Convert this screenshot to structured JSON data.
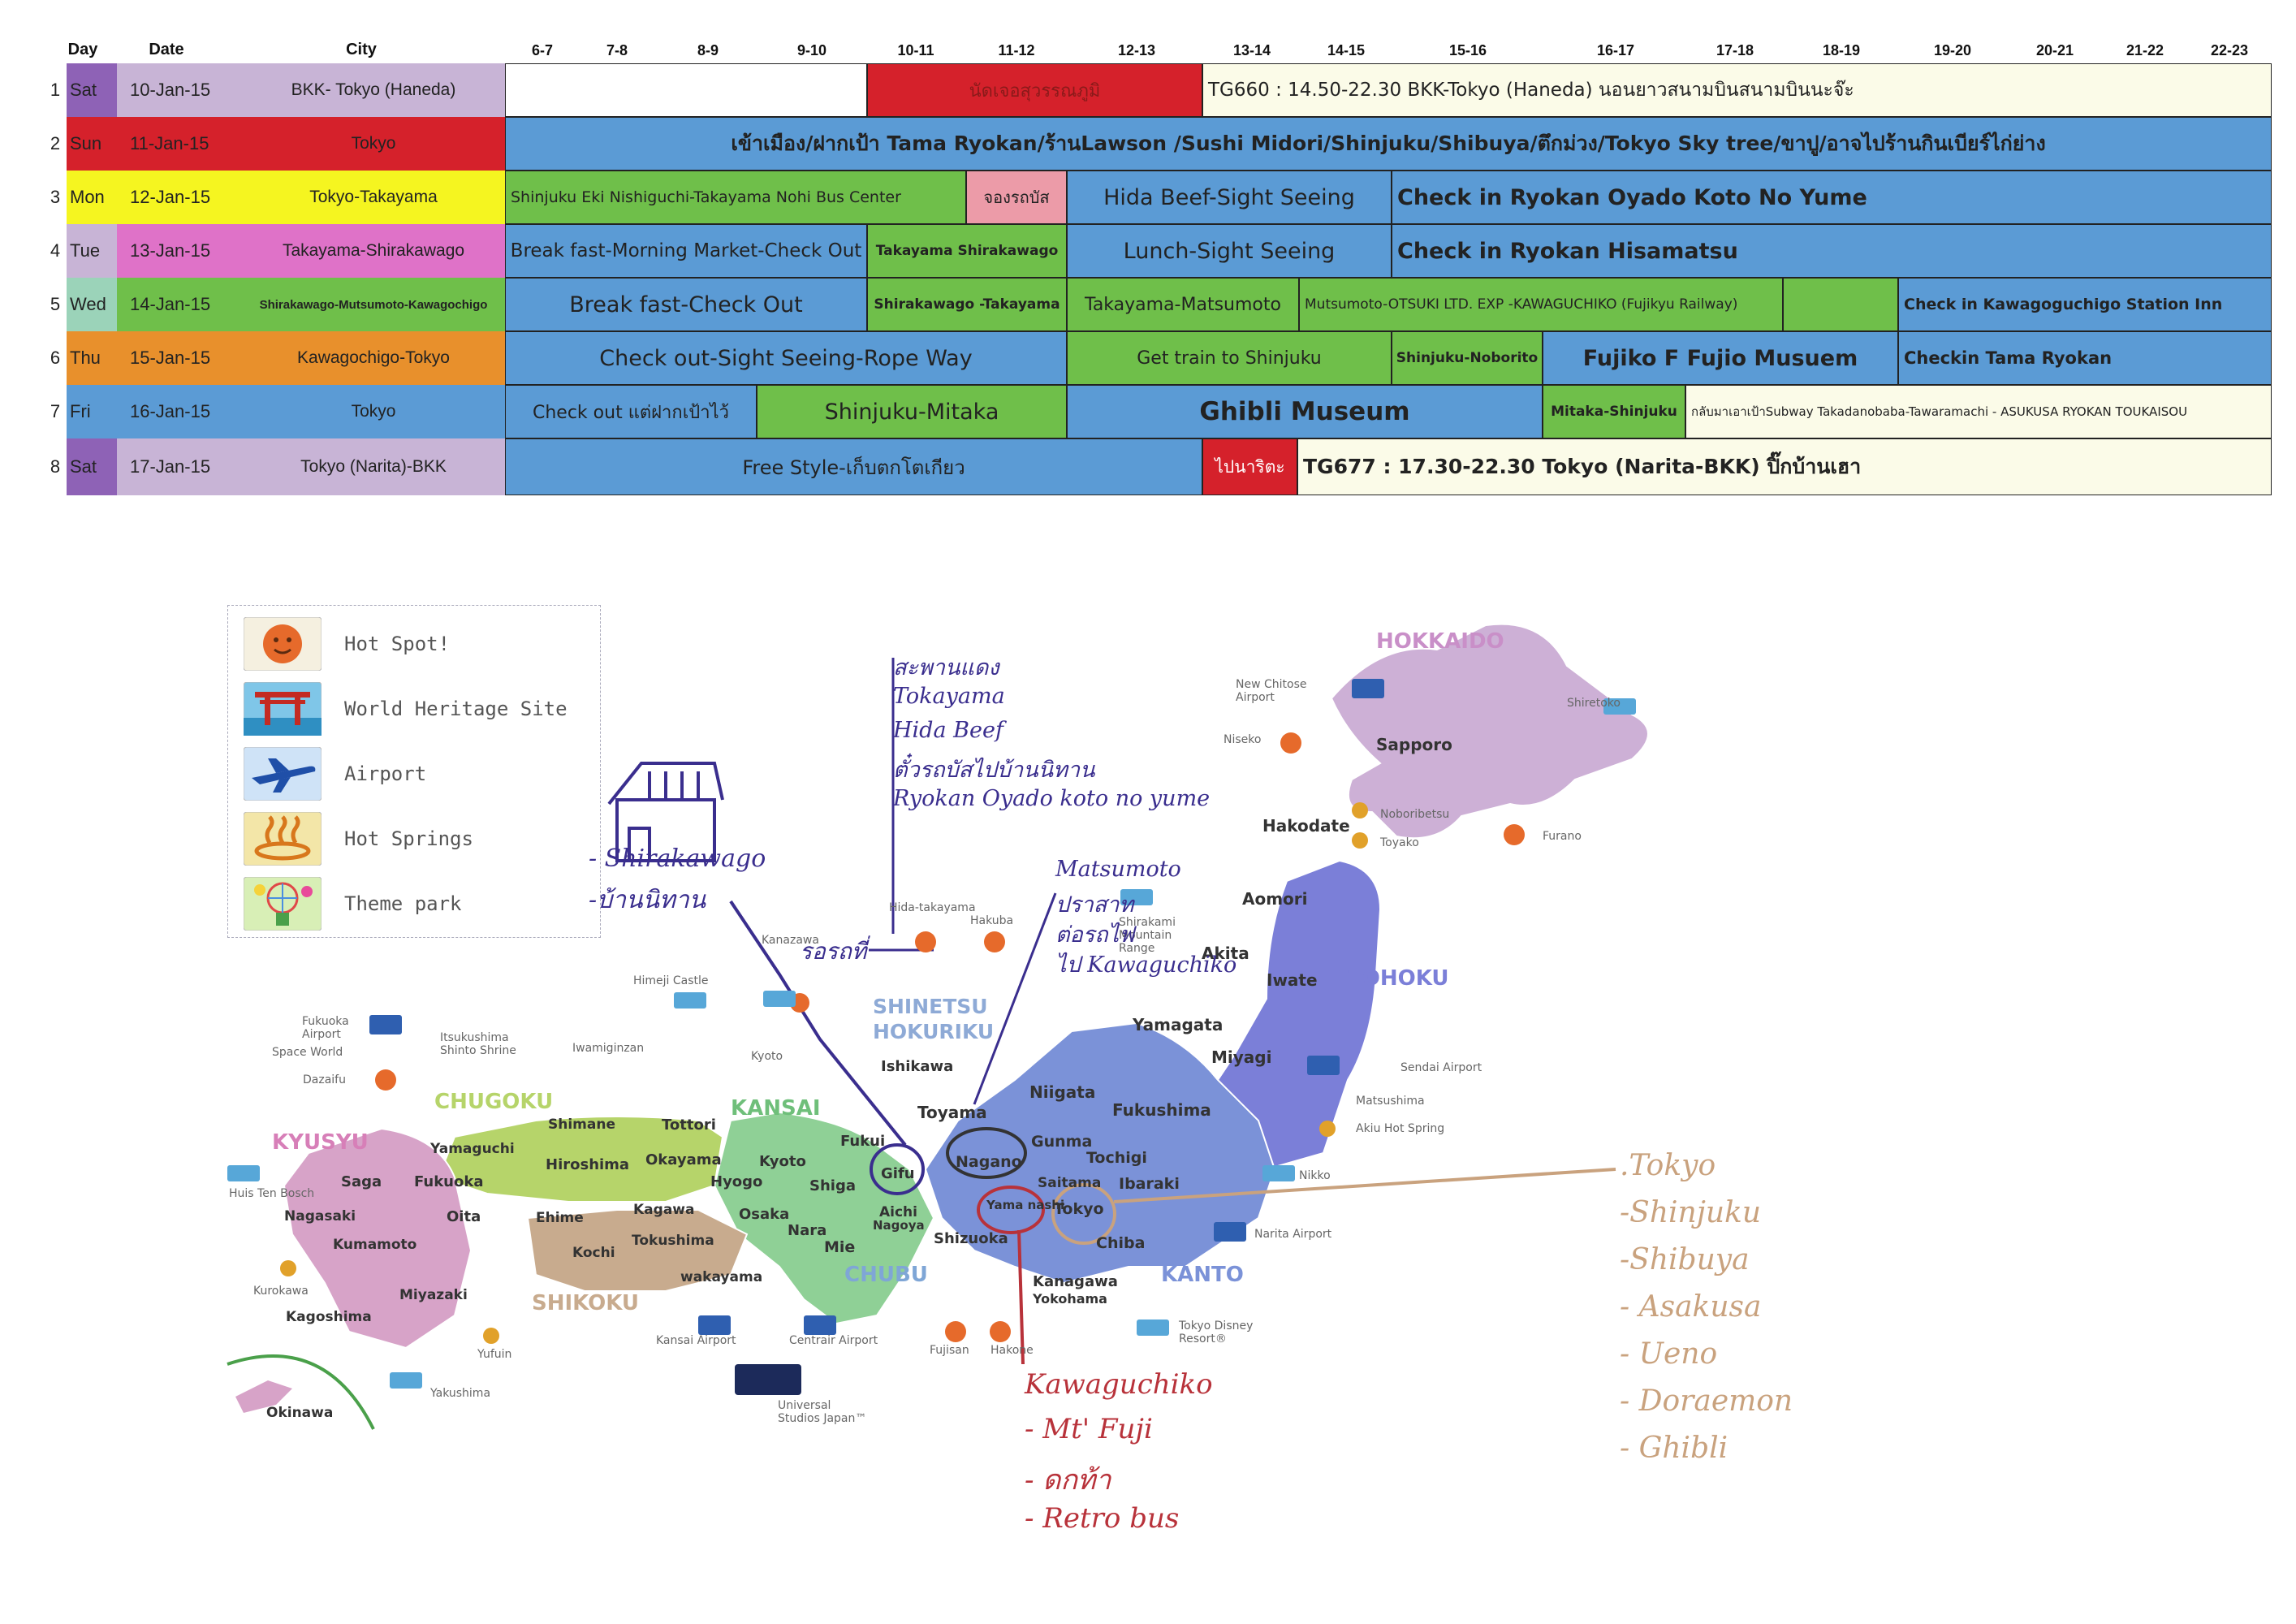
{
  "colors": {
    "red": "#d5212b",
    "blue": "#5b9bd5",
    "green": "#6fbf4a",
    "lavender": "#c8b4d6",
    "yellow": "#f5f520",
    "pink": "#df72c8",
    "orange": "#e8902c",
    "cream": "#fbfbe8",
    "pinklight": "#ec9ba8"
  },
  "schedule": {
    "headers": {
      "day": "Day",
      "date": "Date",
      "city": "City",
      "hours": [
        "6-7",
        "7-8",
        "8-9",
        "9-10",
        "10-11",
        "11-12",
        "12-13",
        "13-14",
        "14-15",
        "15-16",
        "16-17",
        "17-18",
        "18-19",
        "19-20",
        "20-21",
        "21-22",
        "22-23"
      ]
    },
    "rows": [
      {
        "num": "1",
        "day": "Sat",
        "date": "10-Jan-15",
        "city": "BKK- Tokyo (Haneda)"
      },
      {
        "num": "2",
        "day": "Sun",
        "date": "11-Jan-15",
        "city": "Tokyo"
      },
      {
        "num": "3",
        "day": "Mon",
        "date": "12-Jan-15",
        "city": "Tokyo-Takayama"
      },
      {
        "num": "4",
        "day": "Tue",
        "date": "13-Jan-15",
        "city": "Takayama-Shirakawago"
      },
      {
        "num": "5",
        "day": "Wed",
        "date": "14-Jan-15",
        "city": "Shirakawago-Mutsumoto-Kawagochigo"
      },
      {
        "num": "6",
        "day": "Thu",
        "date": "15-Jan-15",
        "city": "Kawagochigo-Tokyo"
      },
      {
        "num": "7",
        "day": "Fri",
        "date": "16-Jan-15",
        "city": "Tokyo"
      },
      {
        "num": "8",
        "day": "Sat",
        "date": "17-Jan-15",
        "city": "Tokyo (Narita)-BKK"
      }
    ],
    "events": {
      "r1_meet": "นัดเจอสุวรรณภูมิ",
      "r1_flight": "TG660 : 14.50-22.30 BKK-Tokyo (Haneda) นอนยาวสนามบินสนามบินนะจ๊ะ",
      "r2_all": "เข้าเมือง/ฝากเป้า Tama Ryokan/ร้านLawson /Sushi Midori/Shinjuku/Shibuya/ตึกม่วง/Tokyo Sky tree/ขาปู/อาจไปร้านกินเบียร์ไก่ย่าง",
      "r3_bus": "Shinjuku Eki Nishiguchi-Takayama Nohi Bus Center",
      "r3_book": "จองรถบัส",
      "r3_beef": "Hida Beef-Sight Seeing",
      "r3_checkin": "Check in Ryokan Oyado Koto No Yume",
      "r4_breakfast": "Break fast-Morning Market-Check Out",
      "r4_route": "Takayama Shirakawago",
      "r4_lunch": "Lunch-Sight Seeing",
      "r4_checkin": "Check in Ryokan Hisamatsu",
      "r5_breakfast": "Break fast-Check Out",
      "r5_route1": "Shirakawago -Takayama",
      "r5_route2": "Takayama-Matsumoto",
      "r5_route3": "Mutsumoto-OTSUKI LTD. EXP -KAWAGUCHIKO (Fujikyu Railway)",
      "r5_checkin": "Check in Kawagoguchigo Station Inn",
      "r6_checkout": "Check out-Sight Seeing-Rope Way",
      "r6_train": "Get train to Shinjuku",
      "r6_route": "Shinjuku-Noborito",
      "r6_museum": "Fujiko F Fujio Musuem",
      "r6_checkin": "Checkin Tama Ryokan",
      "r7_checkout": "Check out แต่ฝากเป้าไว้",
      "r7_route": "Shinjuku-Mitaka",
      "r7_ghibli": "Ghibli Museum",
      "r7_route2": "Mitaka-Shinjuku",
      "r7_return": "กลับมาเอาเป้าSubway Takadanobaba-Tawaramachi - ASUKUSA RYOKAN TOUKAISOU",
      "r8_free": "Free Style-เก็บตกโตเกียว",
      "r8_narita": "ไปนาริตะ",
      "r8_flight": "TG677 : 17.30-22.30 Tokyo (Narita-BKK) ปิ๊กบ้านเฮา"
    }
  },
  "legend": {
    "items": [
      {
        "label": "Hot Spot!",
        "icon": "hot-spot-icon"
      },
      {
        "label": "World Heritage Site",
        "icon": "torii-icon"
      },
      {
        "label": "Airport",
        "icon": "airplane-icon"
      },
      {
        "label": "Hot Springs",
        "icon": "hot-springs-icon"
      },
      {
        "label": "Theme park",
        "icon": "theme-park-icon"
      }
    ]
  },
  "map": {
    "regions": {
      "hokkaido": "HOKKAIDO",
      "tohoku": "TOHOKU",
      "shinetsu": "SHINETSU",
      "hokuriku": "HOKURIKU",
      "kanto": "KANTO",
      "chubu": "CHUBU",
      "kansai": "KANSAI",
      "chugoku": "CHUGOKU",
      "shikoku": "SHIKOKU",
      "kyusyu": "KYUSYU"
    },
    "prefectures": {
      "sapporo": "Sapporo",
      "hakodate": "Hakodate",
      "aomori": "Aomori",
      "akita": "Akita",
      "iwate": "Iwate",
      "yamagata": "Yamagata",
      "miyagi": "Miyagi",
      "niigata": "Niigata",
      "fukushima": "Fukushima",
      "ishikawa": "Ishikawa",
      "toyama": "Toyama",
      "fukui": "Fukui",
      "gifu": "Gifu",
      "nagano": "Nagano",
      "gunma": "Gunma",
      "tochigi": "Tochigi",
      "ibaraki": "Ibaraki",
      "saitama": "Saitama",
      "tokyo": "Tokyo",
      "chiba": "Chiba",
      "kanagawa": "Kanagawa",
      "yokohama": "Yokohama",
      "yamanashi": "Yama nashi",
      "shizuoka": "Shizuoka",
      "aichi": "Aichi",
      "nagoya": "Nagoya",
      "mie": "Mie",
      "shiga": "Shiga",
      "kyoto": "Kyoto",
      "hyogo": "Hyogo",
      "osaka": "Osaka",
      "nara": "Nara",
      "wakayama": "wakayama",
      "tottori": "Tottori",
      "shimane": "Shimane",
      "okayama": "Okayama",
      "hiroshima": "Hiroshima",
      "yamaguchi": "Yamaguchi",
      "kagawa": "Kagawa",
      "ehime": "Ehime",
      "tokushima": "Tokushima",
      "kochi": "Kochi",
      "fukuoka": "Fukuoka",
      "saga": "Saga",
      "nagasaki": "Nagasaki",
      "oita": "Oita",
      "kumamoto": "Kumamoto",
      "miyazaki": "Miyazaki",
      "kagoshima": "Kagoshima",
      "okinawa": "Okinawa"
    },
    "pois": {
      "new_chitose": "New Chitose Airport",
      "shiretoko": "Shiretoko",
      "niseko": "Niseko",
      "noboribetsu": "Noboribetsu",
      "toyako": "Toyako",
      "furano": "Furano",
      "sendai": "Sendai Airport",
      "matsushima": "Matsushima",
      "akiu": "Akiu Hot Spring",
      "nikko": "Nikko",
      "narita": "Narita Airport",
      "disney": "Tokyo Disney Resort®",
      "universal": "Universal Studios Japan™",
      "kansai_airport": "Kansai Airport",
      "centrair": "Centrair Airport",
      "fujisan": "Fujisan",
      "hakone": "Hakone",
      "hida": "Hida-takayama",
      "hakuba": "Hakuba",
      "shirakami": "Shirakami Mountain Range",
      "himeji": "Himeji Castle",
      "iwamiginzan": "Iwamiginzan",
      "kanazawa": "Kanazawa",
      "kyoto_poi": "Kyoto",
      "itsukushima": "Itsukushima Shinto Shrine",
      "fukuoka_airport": "Fukuoka Airport",
      "space_world": "Space World",
      "dazaifu": "Dazaifu",
      "huis": "Huis Ten Bosch",
      "kurokawa": "Kurokawa",
      "yufuin": "Yufuin",
      "yakushima": "Yakushima"
    },
    "notes": {
      "shirakawago": [
        "- Shirakawago",
        "-บ้านนิทาน"
      ],
      "takayama": [
        "สะพานแดง",
        "Tokayama",
        "Hida Beef",
        "ตั๋วรถบัสไปบ้านนิทาน",
        "Ryokan Oyado koto no yume"
      ],
      "bus": "รอรถที่",
      "matsumoto": [
        "Matsumoto",
        "ปราสาท",
        "ต่อรถไฟ",
        "ไป Kawaguchiko"
      ],
      "kawaguchiko": [
        "Kawaguchiko",
        "- Mt' Fuji",
        "- ดกท้า",
        "- Retro bus"
      ],
      "tokyo": [
        ".Tokyo",
        "-Shinjuku",
        "-Shibuya",
        "- Asakusa",
        "- Ueno",
        "- Doraemon",
        "- Ghibli"
      ]
    }
  }
}
